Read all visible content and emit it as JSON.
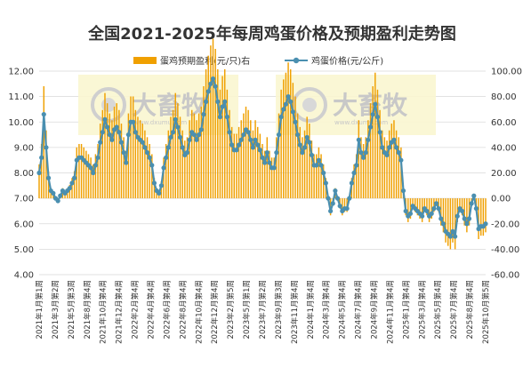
{
  "chart_data": {
    "type": "bar+line",
    "title": "全国2021-2025年每周鸡蛋价格及预期盈利走势图",
    "legend": [
      {
        "name": "蛋鸡预期盈利(元/只)右",
        "color": "#f0a000",
        "kind": "bar"
      },
      {
        "name": "鸡蛋价格(元/公斤)",
        "color": "#4a8fb0",
        "kind": "line"
      }
    ],
    "y_left": {
      "min": 4,
      "max": 12,
      "step": 1,
      "ticks": [
        "4.00",
        "5.00",
        "6.00",
        "7.00",
        "8.00",
        "9.00",
        "10.00",
        "11.00",
        "12.00"
      ]
    },
    "y_right": {
      "min": -60,
      "max": 100,
      "step": 20,
      "ticks": [
        "-60.00",
        "-40.00",
        "-20.00",
        "0.00",
        "20.00",
        "40.00",
        "60.00",
        "80.00",
        "100.00"
      ]
    },
    "x_ticks": [
      "2021年1月第1周",
      "2021年3月第2周",
      "2021年5月第3周",
      "2021年8月第4周",
      "2021年10月第4周",
      "2021年12月第4周",
      "2022年2月第4周",
      "2022年4月第4周",
      "2022年6月第4周",
      "2022年8月第4周",
      "2022年10月第4周",
      "2022年12月第4周",
      "2023年2月第5周",
      "2023年5月第1周",
      "2023年7月第2周",
      "2023年9月第3周",
      "2023年11月第4周",
      "2024年1月第4周",
      "2024年3月第4周",
      "2024年5月第4周",
      "2024年7月第4周",
      "2024年9月第4周",
      "2024年11月第4周",
      "2025年1月第4周",
      "2025年3月第4周",
      "2025年5月第4周",
      "2025年7月第4周",
      "2025年8月第4周",
      "2025年10月第5周"
    ],
    "price": [
      8.0,
      8.6,
      10.3,
      9.0,
      7.8,
      7.3,
      7.2,
      7.0,
      6.9,
      7.1,
      7.3,
      7.2,
      7.3,
      7.4,
      7.6,
      7.8,
      8.5,
      8.6,
      8.6,
      8.5,
      8.4,
      8.3,
      8.2,
      8.0,
      8.3,
      8.6,
      9.2,
      9.6,
      10.1,
      9.8,
      9.5,
      9.3,
      9.7,
      9.8,
      9.6,
      9.2,
      8.8,
      8.4,
      9.5,
      10.0,
      10.0,
      9.6,
      9.4,
      9.3,
      9.2,
      9.0,
      8.8,
      8.6,
      8.3,
      7.6,
      7.3,
      7.2,
      7.5,
      8.2,
      8.6,
      9.0,
      9.4,
      9.6,
      10.1,
      9.8,
      9.4,
      9.0,
      8.7,
      8.8,
      9.3,
      9.6,
      9.5,
      9.3,
      9.5,
      9.7,
      10.3,
      10.8,
      11.2,
      11.5,
      11.7,
      11.4,
      10.8,
      10.2,
      10.6,
      10.8,
      10.2,
      9.6,
      9.1,
      8.9,
      8.9,
      9.1,
      9.3,
      9.5,
      9.7,
      9.6,
      9.3,
      9.0,
      9.3,
      9.1,
      8.9,
      8.6,
      8.4,
      8.8,
      8.4,
      8.2,
      8.2,
      8.8,
      9.5,
      10.2,
      10.5,
      10.7,
      11.0,
      10.8,
      10.4,
      10.0,
      9.5,
      9.1,
      8.8,
      9.0,
      9.4,
      9.2,
      8.7,
      8.3,
      8.3,
      8.5,
      8.3,
      8.0,
      7.6,
      7.0,
      6.5,
      6.8,
      7.3,
      7.0,
      6.7,
      6.5,
      6.6,
      6.6,
      7.0,
      7.6,
      8.0,
      8.3,
      9.3,
      8.8,
      8.6,
      8.8,
      9.3,
      9.8,
      10.3,
      10.7,
      10.2,
      9.6,
      9.0,
      8.8,
      8.7,
      9.0,
      9.2,
      9.3,
      9.0,
      8.8,
      8.5,
      7.3,
      6.5,
      6.3,
      6.4,
      6.7,
      6.6,
      6.5,
      6.4,
      6.3,
      6.6,
      6.5,
      6.3,
      6.4,
      6.6,
      6.8,
      6.6,
      6.2,
      6.0,
      5.7,
      5.6,
      5.5,
      5.7,
      5.5,
      6.3,
      6.6,
      6.5,
      6.2,
      6.0,
      6.2,
      6.8,
      7.1,
      6.6,
      5.8,
      5.9,
      5.9,
      6.0
    ]
  }
}
